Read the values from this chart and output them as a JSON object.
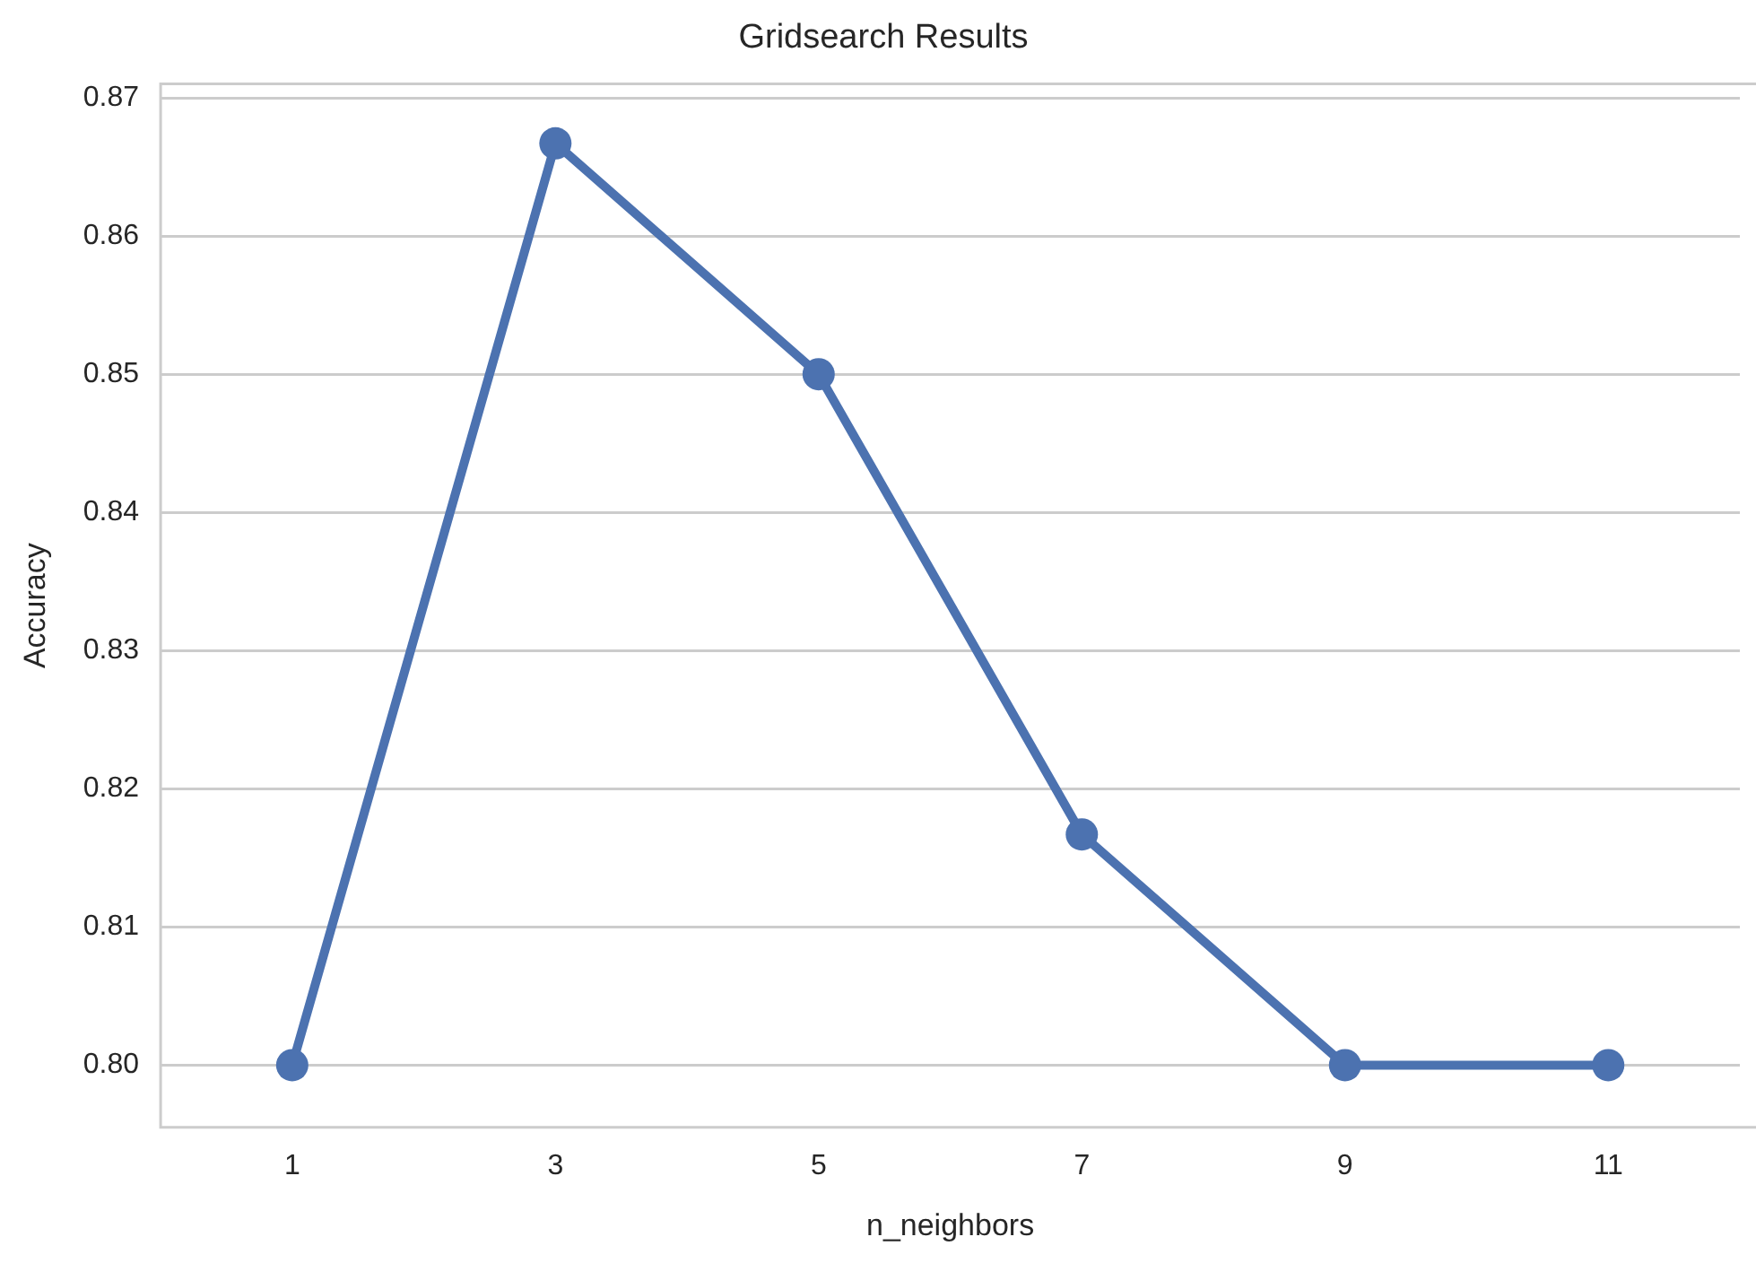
{
  "chart_data": {
    "type": "line",
    "title": "Gridsearch Results",
    "xlabel": "n_neighbors",
    "ylabel": "Accuracy",
    "categories": [
      "1",
      "3",
      "5",
      "7",
      "9",
      "11"
    ],
    "series": [
      {
        "color": "#4c72b0",
        "values": [
          0.8,
          0.8667,
          0.85,
          0.8167,
          0.8,
          0.8
        ]
      }
    ],
    "ylim": [
      0.7955,
      0.871
    ],
    "yticks": [
      {
        "value": 0.8,
        "label": "0.80"
      },
      {
        "value": 0.81,
        "label": "0.81"
      },
      {
        "value": 0.82,
        "label": "0.82"
      },
      {
        "value": 0.83,
        "label": "0.83"
      },
      {
        "value": 0.84,
        "label": "0.84"
      },
      {
        "value": 0.85,
        "label": "0.85"
      },
      {
        "value": 0.86,
        "label": "0.86"
      },
      {
        "value": 0.87,
        "label": "0.87"
      }
    ],
    "grid": "y",
    "legend": false,
    "marker": "circle",
    "line_style": "solid"
  }
}
